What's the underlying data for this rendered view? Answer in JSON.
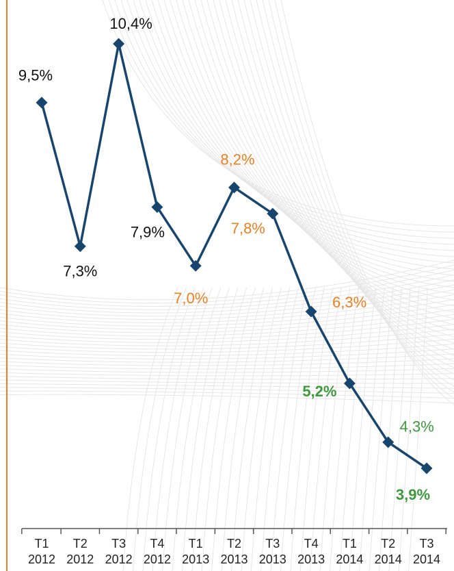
{
  "chart_data": {
    "type": "line",
    "categories": [
      "T1 2012",
      "T2 2012",
      "T3 2012",
      "T4 2012",
      "T1 2013",
      "T2 2013",
      "T3 2013",
      "T4 2013",
      "T1 2014",
      "T2 2014",
      "T3 2014"
    ],
    "values": [
      9.5,
      7.3,
      10.4,
      7.9,
      7.0,
      8.2,
      7.8,
      6.3,
      5.2,
      4.3,
      3.9
    ],
    "value_labels": [
      "9,5%",
      "7,3%",
      "10,4%",
      "7,9%",
      "7,0%",
      "8,2%",
      "7,8%",
      "6,3%",
      "5,2%",
      "4,3%",
      "3,9%"
    ],
    "color": "#17456e",
    "label_colors": [
      "#111111",
      "#111111",
      "#111111",
      "#111111",
      "#f07f1e",
      "#f07f1e",
      "#f07f1e",
      "#f07f1e",
      "#3a9a3c",
      "#3a9a3c",
      "#3a9a3c"
    ],
    "label_bold": [
      false,
      false,
      false,
      false,
      false,
      false,
      false,
      false,
      true,
      false,
      true
    ]
  }
}
